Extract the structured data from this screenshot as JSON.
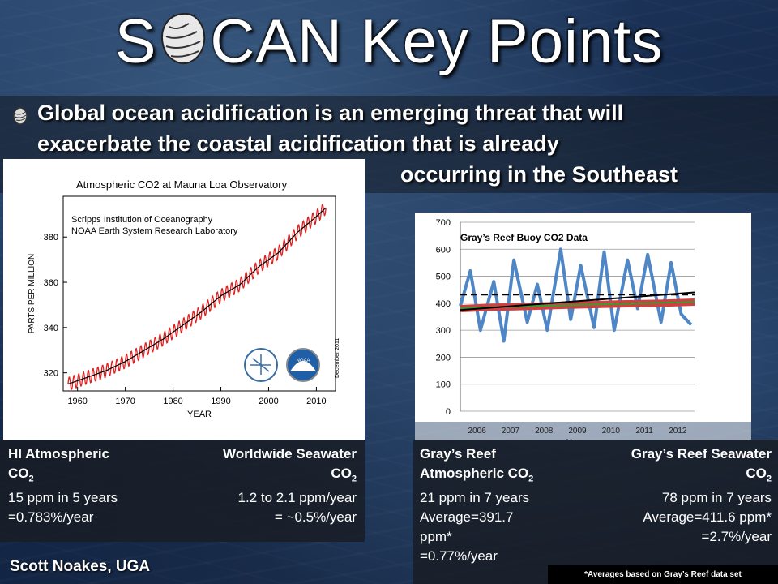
{
  "slide": {
    "title_prefix": "S",
    "title_suffix": "CAN Key Points",
    "bullet_line1": "Global ocean acidification is an emerging threat that will",
    "bullet_line2": "exacerbate the coastal acidification that is already",
    "bullet_line3": "occurring in the Southeast",
    "author": "Scott Noakes, UGA",
    "footnote": "*Averages based on Gray’s Reef data set"
  },
  "chart_data": [
    {
      "type": "line",
      "title": "Atmospheric CO2 at Mauna Loa Observatory",
      "subtitle_line1": "Scripps Institution of Oceanography",
      "subtitle_line2": "NOAA Earth System Research Laboratory",
      "xlabel": "YEAR",
      "ylabel": "PARTS PER MILLION",
      "xlim": [
        1957,
        2014
      ],
      "ylim": [
        312,
        398
      ],
      "xticks": [
        1960,
        1970,
        1980,
        1990,
        2000,
        2010
      ],
      "yticks": [
        320,
        340,
        360,
        380
      ],
      "annotation": "December 2011",
      "series": [
        {
          "color": "#e02020",
          "x": [
            1958,
            1962,
            1966,
            1970,
            1974,
            1978,
            1982,
            1986,
            1990,
            1994,
            1998,
            2002,
            2006,
            2010,
            2012
          ],
          "values": [
            315,
            318,
            321,
            325,
            330,
            335,
            341,
            347,
            354,
            359,
            367,
            373,
            382,
            389,
            393
          ]
        },
        {
          "color": "#000000",
          "x": [
            1958,
            1962,
            1966,
            1970,
            1974,
            1978,
            1982,
            1986,
            1990,
            1994,
            1998,
            2002,
            2006,
            2010,
            2012
          ],
          "values": [
            315,
            318,
            321,
            325,
            330,
            335,
            341,
            347,
            354,
            359,
            367,
            373,
            382,
            389,
            393
          ]
        }
      ],
      "logos": [
        "scripps-logo",
        "noaa-logo"
      ]
    },
    {
      "type": "line",
      "title": "Gray’s Reef Buoy CO2 Data",
      "xlabel": "Year",
      "xlim": [
        2006,
        2013
      ],
      "ylim": [
        0,
        700
      ],
      "yticks": [
        0,
        100,
        200,
        300,
        400,
        500,
        600,
        700
      ],
      "xticks": [
        2006,
        2007,
        2008,
        2009,
        2010,
        2011,
        2012
      ],
      "series": [
        {
          "color": "#4f86c6",
          "x": [
            2006.0,
            2006.3,
            2006.6,
            2007.0,
            2007.3,
            2007.6,
            2008.0,
            2008.3,
            2008.6,
            2009.0,
            2009.3,
            2009.6,
            2010.0,
            2010.3,
            2010.6,
            2011.0,
            2011.3,
            2011.6,
            2012.0,
            2012.3,
            2012.6,
            2012.9
          ],
          "values": [
            390,
            520,
            300,
            480,
            260,
            560,
            330,
            470,
            300,
            600,
            340,
            540,
            310,
            590,
            300,
            560,
            380,
            580,
            330,
            550,
            360,
            320
          ]
        },
        {
          "color": "#d04040",
          "x": [
            2006,
            2007,
            2008,
            2009,
            2010,
            2011,
            2012,
            2013
          ],
          "values": [
            380,
            385,
            388,
            392,
            395,
            398,
            400,
            404
          ]
        },
        {
          "color": "#30a030",
          "x": [
            2006,
            2013
          ],
          "values": [
            382,
            405
          ]
        },
        {
          "color": "#000000",
          "x": [
            2006,
            2013
          ],
          "values": [
            375,
            440
          ]
        },
        {
          "color": "#000000",
          "dashed": true,
          "x": [
            2006,
            2013
          ],
          "values": [
            432,
            432
          ]
        }
      ]
    }
  ],
  "info_boxes": {
    "hi_atm": {
      "line1": "HI Atmospheric",
      "line2_main": "CO",
      "line2_sub": "2",
      "line3": "15 ppm in 5 years",
      "line4": "=0.783%/year"
    },
    "world_sea": {
      "line1": "Worldwide Seawater",
      "line2_main": "CO",
      "line2_sub": "2",
      "line3": "1.2 to 2.1 ppm/year",
      "line4": "= ~0.5%/year"
    },
    "gr_atm": {
      "line1": "Gray’s Reef",
      "line2_main": "Atmospheric CO",
      "line2_sub": "2",
      "line3": "21 ppm in 7 years",
      "line4": "Average=391.7",
      "line5": "ppm*",
      "line6": "=0.77%/year"
    },
    "gr_sea": {
      "line1": "Gray’s Reef Seawater",
      "line2_main": "CO",
      "line2_sub": "2",
      "line3": "78 ppm in 7 years",
      "line4": "Average=411.6 ppm*",
      "line5": "=2.7%/year"
    }
  }
}
